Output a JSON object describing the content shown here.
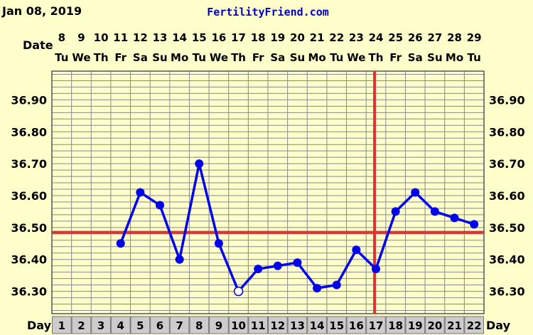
{
  "header": {
    "date_text": "Jan 08, 2019",
    "brand": "FertilityFriend.com"
  },
  "labels": {
    "date_row": "Date",
    "day_row": "Day"
  },
  "colors": {
    "background": "#ffffcc",
    "grid": "#888888",
    "series": "#0000ee",
    "reference_line": "#dd3333",
    "brand": "#0000cc",
    "day_cell": "#cccccc"
  },
  "chart_data": {
    "type": "line",
    "days": [
      1,
      2,
      3,
      4,
      5,
      6,
      7,
      8,
      9,
      10,
      11,
      12,
      13,
      14,
      15,
      16,
      17,
      18,
      19,
      20,
      21,
      22
    ],
    "dates": [
      "8",
      "9",
      "10",
      "11",
      "12",
      "13",
      "14",
      "15",
      "16",
      "17",
      "18",
      "19",
      "20",
      "21",
      "22",
      "23",
      "24",
      "25",
      "26",
      "27",
      "28",
      "29"
    ],
    "weekdays": [
      "Tu",
      "We",
      "Th",
      "Fr",
      "Sa",
      "Su",
      "Mo",
      "Tu",
      "We",
      "Th",
      "Fr",
      "Sa",
      "Su",
      "Mo",
      "Tu",
      "We",
      "Th",
      "Fr",
      "Sa",
      "Su",
      "Mo",
      "Tu"
    ],
    "series": [
      {
        "values": [
          null,
          null,
          null,
          36.45,
          36.61,
          36.57,
          36.4,
          36.7,
          36.45,
          36.3,
          36.37,
          36.38,
          36.39,
          36.31,
          36.32,
          36.43,
          36.37,
          36.55,
          36.61,
          36.55,
          36.53,
          36.51
        ],
        "open_points": [
          10
        ]
      }
    ],
    "y_ticks": [
      "36.90",
      "36.80",
      "36.70",
      "36.60",
      "36.50",
      "36.40",
      "36.30"
    ],
    "ylim": [
      36.23,
      36.99
    ],
    "coverline": 36.485,
    "ovulation_day": 17,
    "grid": true
  }
}
